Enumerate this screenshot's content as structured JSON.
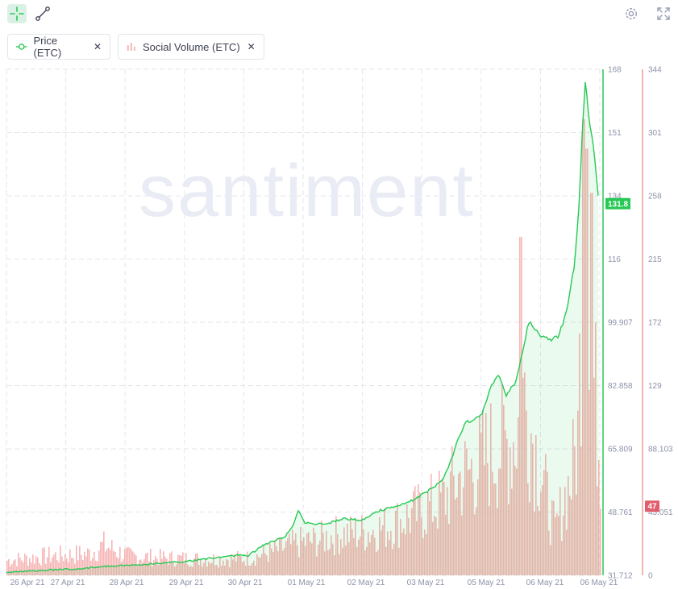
{
  "toolbar": {
    "icons": [
      "cross-cursor-icon",
      "line-drawing-icon",
      "settings-gear-icon",
      "fullscreen-icon"
    ]
  },
  "metrics": [
    {
      "label": "Price (ETC)",
      "color": "#26c953",
      "icon": "line-metric-icon"
    },
    {
      "label": "Social Volume (ETC)",
      "color": "#f4a9a9",
      "icon": "bar-metric-icon"
    }
  ],
  "watermark": "santiment",
  "chart_data": {
    "type": "line",
    "x": [
      "26 Apr 21",
      "27 Apr 21",
      "28 Apr 21",
      "29 Apr 21",
      "30 Apr 21",
      "01 May 21",
      "02 May 21",
      "03 May 21",
      "05 May 21",
      "06 May 21",
      "06 May 21"
    ],
    "series": [
      {
        "name": "Price (ETC)",
        "type": "line",
        "color": "#26c953",
        "axis": "left",
        "ylim": [
          31.712,
          168
        ],
        "ticks": [
          "168",
          "151",
          "134",
          "116",
          "99.907",
          "82.858",
          "65.809",
          "48.761",
          "31.712"
        ],
        "current_label": "131.8",
        "points": [
          [
            0,
            32.5
          ],
          [
            40,
            33.0
          ],
          [
            90,
            33.5
          ],
          [
            130,
            34.2
          ],
          [
            180,
            34.8
          ],
          [
            230,
            35.6
          ],
          [
            260,
            36.5
          ],
          [
            290,
            37.2
          ],
          [
            300,
            37.0
          ],
          [
            320,
            40.0
          ],
          [
            345,
            42.0
          ],
          [
            355,
            45.0
          ],
          [
            362,
            49.0
          ],
          [
            370,
            46.0
          ],
          [
            380,
            45.5
          ],
          [
            400,
            45.8
          ],
          [
            420,
            47.0
          ],
          [
            440,
            46.5
          ],
          [
            460,
            49.0
          ],
          [
            480,
            50.0
          ],
          [
            505,
            52.0
          ],
          [
            520,
            54.0
          ],
          [
            540,
            57.0
          ],
          [
            550,
            62.0
          ],
          [
            560,
            68.0
          ],
          [
            570,
            73.0
          ],
          [
            580,
            73.5
          ],
          [
            590,
            75.0
          ],
          [
            600,
            82.0
          ],
          [
            610,
            86.0
          ],
          [
            620,
            80.0
          ],
          [
            632,
            84.0
          ],
          [
            640,
            92.0
          ],
          [
            648,
            100.0
          ],
          [
            655,
            98.0
          ],
          [
            665,
            96.0
          ],
          [
            675,
            95.0
          ],
          [
            685,
            96.0
          ],
          [
            695,
            103.0
          ],
          [
            705,
            116.0
          ],
          [
            710,
            130.0
          ],
          [
            714,
            150.0
          ],
          [
            718,
            165.0
          ],
          [
            722,
            155.0
          ],
          [
            726,
            150.0
          ],
          [
            730,
            143.0
          ],
          [
            735,
            131.8
          ]
        ]
      },
      {
        "name": "Social Volume (ETC)",
        "type": "bar",
        "color": "#f4a9a9",
        "axis": "right",
        "ylim": [
          0,
          344
        ],
        "ticks": [
          "344",
          "301",
          "258",
          "215",
          "172",
          "129",
          "88.103",
          "45.051",
          "0"
        ],
        "current_label": "47",
        "envelope": [
          [
            0,
            14
          ],
          [
            50,
            18
          ],
          [
            100,
            20
          ],
          [
            120,
            28
          ],
          [
            150,
            18
          ],
          [
            200,
            16
          ],
          [
            250,
            15
          ],
          [
            300,
            16
          ],
          [
            330,
            22
          ],
          [
            360,
            30
          ],
          [
            380,
            32
          ],
          [
            410,
            38
          ],
          [
            440,
            40
          ],
          [
            470,
            45
          ],
          [
            500,
            55
          ],
          [
            520,
            62
          ],
          [
            540,
            70
          ],
          [
            560,
            90
          ],
          [
            580,
            100
          ],
          [
            600,
            115
          ],
          [
            615,
            120
          ],
          [
            630,
            128
          ],
          [
            640,
            170
          ],
          [
            650,
            135
          ],
          [
            660,
            105
          ],
          [
            670,
            70
          ],
          [
            680,
            40
          ],
          [
            690,
            70
          ],
          [
            700,
            90
          ],
          [
            708,
            130
          ],
          [
            714,
            300
          ],
          [
            720,
            250
          ],
          [
            728,
            180
          ],
          [
            736,
            110
          ]
        ],
        "peaks": [
          [
            637,
            230
          ],
          [
            715,
            310
          ],
          [
            719,
            290
          ],
          [
            725,
            260
          ]
        ]
      }
    ],
    "title": "",
    "xlabel": "",
    "ylabel": "",
    "grid": true
  }
}
